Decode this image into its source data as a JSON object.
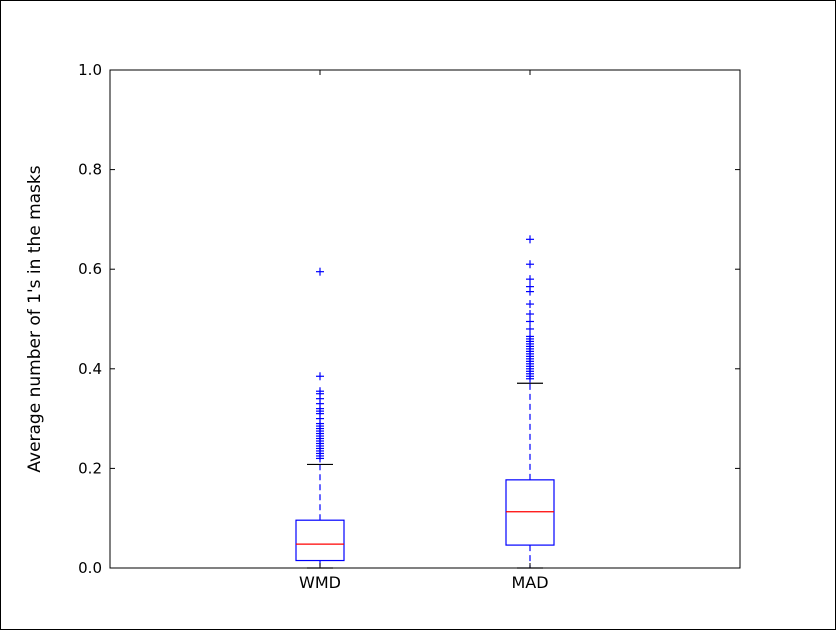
{
  "chart_data": {
    "type": "box",
    "title": "",
    "xlabel": "",
    "ylabel": "Average number of 1's in the masks",
    "ylim": [
      0.0,
      1.0
    ],
    "yticks": [
      "0.0",
      "0.2",
      "0.4",
      "0.6",
      "0.8",
      "1.0"
    ],
    "grid": false,
    "categories": [
      "WMD",
      "MAD"
    ],
    "boxes": [
      {
        "name": "WMD",
        "whisker_low": 0.0,
        "q1": 0.015,
        "median": 0.048,
        "q3": 0.096,
        "whisker_high": 0.208,
        "outliers": [
          0.22,
          0.225,
          0.23,
          0.235,
          0.24,
          0.245,
          0.25,
          0.255,
          0.26,
          0.265,
          0.27,
          0.275,
          0.28,
          0.285,
          0.29,
          0.3,
          0.31,
          0.315,
          0.32,
          0.33,
          0.34,
          0.35,
          0.355,
          0.385,
          0.595
        ]
      },
      {
        "name": "MAD",
        "whisker_low": 0.0,
        "q1": 0.046,
        "median": 0.113,
        "q3": 0.177,
        "whisker_high": 0.371,
        "outliers": [
          0.38,
          0.385,
          0.39,
          0.395,
          0.4,
          0.405,
          0.41,
          0.415,
          0.42,
          0.425,
          0.43,
          0.435,
          0.44,
          0.445,
          0.45,
          0.455,
          0.46,
          0.465,
          0.48,
          0.495,
          0.51,
          0.53,
          0.555,
          0.565,
          0.58,
          0.61,
          0.66
        ]
      }
    ],
    "colors": {
      "box": "#0000ff",
      "whisker": "#0000ff",
      "median": "#ff0000",
      "cap": "#000000",
      "outlier": "#0000ff"
    }
  }
}
